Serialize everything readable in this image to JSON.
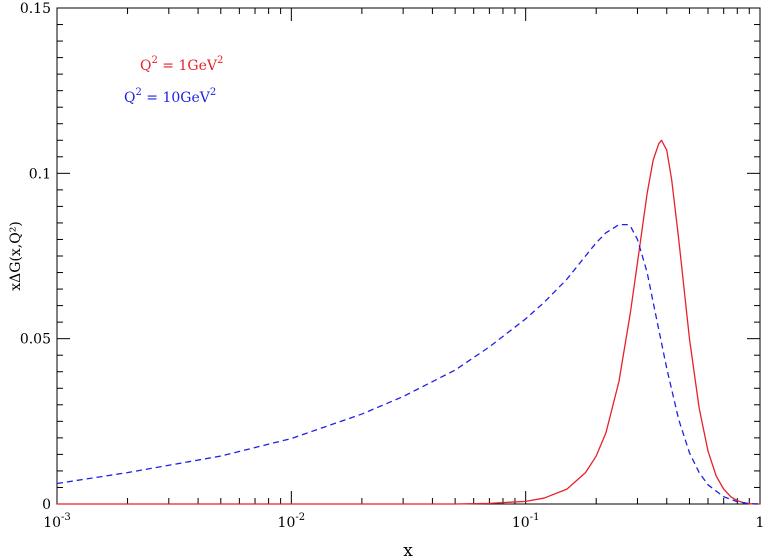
{
  "chart_data": {
    "type": "line",
    "title": "",
    "xlabel": "x",
    "ylabel": "xΔG(x,Q²)",
    "x_scale": "log",
    "xlim": [
      0.001,
      1
    ],
    "ylim": [
      0,
      0.15
    ],
    "grid": false,
    "legend_position": "top-left",
    "x_tick_labels": [
      {
        "value": 0.001,
        "base": "10",
        "exp": "-3"
      },
      {
        "value": 0.01,
        "base": "10",
        "exp": "-2"
      },
      {
        "value": 0.1,
        "base": "10",
        "exp": "-1"
      },
      {
        "value": 1,
        "base": "1",
        "exp": ""
      }
    ],
    "y_ticks": [
      0,
      0.05,
      0.1,
      0.15
    ],
    "y_tick_labels": [
      "0",
      "0.05",
      "0.1",
      "0.15"
    ],
    "series": [
      {
        "name": "Q² = 1GeV²",
        "legend_parts": {
          "q": "Q",
          "q_exp": "2",
          "mid": " = 1GeV",
          "unit_exp": "2"
        },
        "color": "#e8202a",
        "dash": "solid",
        "x": [
          0.001,
          0.01,
          0.05,
          0.07,
          0.1,
          0.12,
          0.15,
          0.18,
          0.2,
          0.22,
          0.25,
          0.28,
          0.3,
          0.33,
          0.35,
          0.37,
          0.38,
          0.4,
          0.42,
          0.45,
          0.5,
          0.55,
          0.6,
          0.65,
          0.7,
          0.75,
          0.8,
          0.85,
          0.9,
          0.95,
          1.0
        ],
        "y": [
          0.0,
          0.0,
          0.0,
          0.0002,
          0.0008,
          0.0018,
          0.0045,
          0.0095,
          0.0145,
          0.0215,
          0.037,
          0.058,
          0.073,
          0.094,
          0.104,
          0.109,
          0.11,
          0.107,
          0.098,
          0.08,
          0.05,
          0.029,
          0.016,
          0.0085,
          0.0045,
          0.0022,
          0.001,
          0.0004,
          0.0001,
          0.0,
          0.0
        ]
      },
      {
        "name": "Q² = 10GeV²",
        "legend_parts": {
          "q": "Q",
          "q_exp": "2",
          "mid": " = 10GeV",
          "unit_exp": "2"
        },
        "color": "#2020e8",
        "dash": "dashed",
        "x": [
          0.001,
          0.002,
          0.005,
          0.01,
          0.02,
          0.03,
          0.05,
          0.07,
          0.1,
          0.12,
          0.15,
          0.18,
          0.2,
          0.22,
          0.25,
          0.27,
          0.28,
          0.3,
          0.33,
          0.35,
          0.4,
          0.45,
          0.5,
          0.55,
          0.6,
          0.7,
          0.8,
          0.9,
          1.0
        ],
        "y": [
          0.0062,
          0.0095,
          0.0145,
          0.0198,
          0.0272,
          0.0325,
          0.0405,
          0.0475,
          0.056,
          0.061,
          0.068,
          0.075,
          0.079,
          0.082,
          0.0845,
          0.0845,
          0.084,
          0.08,
          0.07,
          0.061,
          0.041,
          0.0255,
          0.0155,
          0.0095,
          0.0058,
          0.0022,
          0.0007,
          0.0001,
          0.0
        ]
      }
    ]
  }
}
